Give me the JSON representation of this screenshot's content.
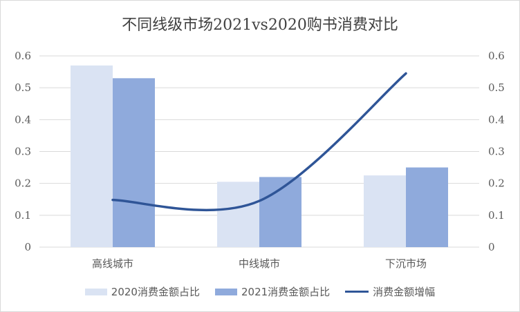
{
  "chart_data": {
    "type": "bar",
    "title": "不同线级市场2021vs2020购书消费对比",
    "categories": [
      "高线城市",
      "中线城市",
      "下沉市场"
    ],
    "series": [
      {
        "name": "2020消费金额占比",
        "type": "bar",
        "axis": "left",
        "color": "#dae3f3",
        "values": [
          0.57,
          0.205,
          0.225
        ]
      },
      {
        "name": "2021消费金额占比",
        "type": "bar",
        "axis": "left",
        "color": "#8faadc",
        "values": [
          0.53,
          0.22,
          0.25
        ]
      },
      {
        "name": "消费金额增幅",
        "type": "line",
        "axis": "right",
        "color": "#2f5597",
        "values": [
          0.148,
          0.145,
          0.545
        ]
      }
    ],
    "y_left": {
      "min": 0,
      "max": 0.6,
      "ticks": [
        "0",
        "0.1",
        "0.2",
        "0.3",
        "0.4",
        "0.5",
        "0.6"
      ]
    },
    "y_right": {
      "min": 0,
      "max": 0.6,
      "ticks": [
        "0",
        "0.1",
        "0.2",
        "0.3",
        "0.4",
        "0.5",
        "0.6"
      ]
    },
    "grid": true,
    "legend_position": "bottom"
  }
}
